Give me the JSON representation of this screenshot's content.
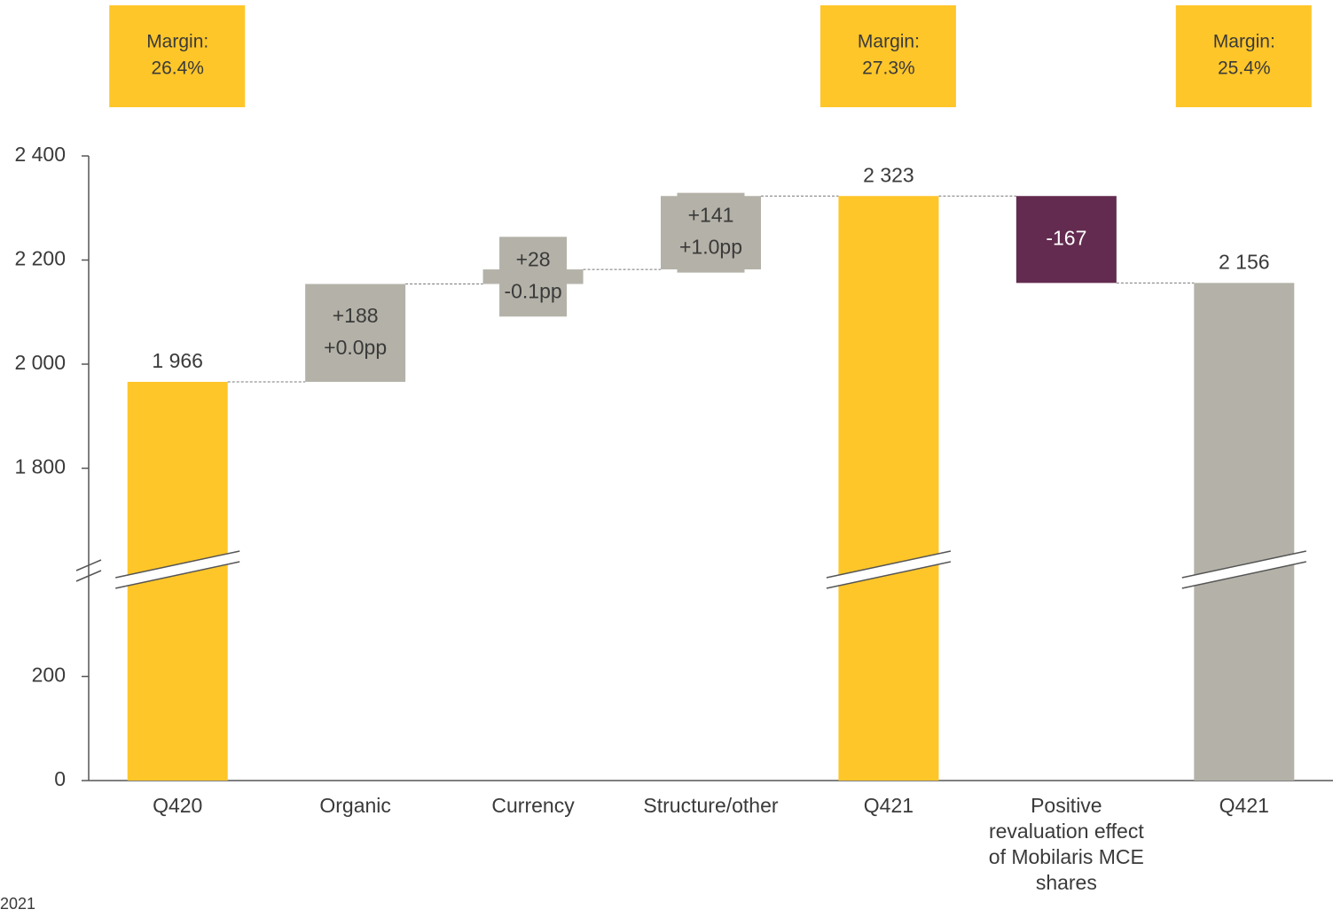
{
  "chart_data": {
    "type": "waterfall",
    "categories": [
      "Q420",
      "Organic",
      "Currency",
      "Structure/other",
      "Q421",
      "Positive revaluation effect of Mobilaris MCE shares",
      "Q421"
    ],
    "values": [
      1966,
      188,
      28,
      141,
      2323,
      -167,
      2156
    ],
    "value_labels": [
      "1 966",
      "+188",
      "+28",
      "+141",
      "2 323",
      "-167",
      "2 156"
    ],
    "bar_kinds": [
      "total",
      "delta",
      "delta",
      "delta",
      "total",
      "delta",
      "total"
    ],
    "colors": [
      "#FFC629",
      "#B4B2A8",
      "#B4B2A8",
      "#B4B2A8",
      "#FFC629",
      "#632B4F",
      "#B4B2A8"
    ],
    "margin_changes": [
      null,
      "+0.0pp",
      "-0.1pp",
      "+1.0pp",
      null,
      null,
      null
    ],
    "margin_title": "Margin:",
    "margins": [
      "26.4%",
      null,
      null,
      null,
      "27.3%",
      null,
      "25.4%"
    ],
    "margin_box_color": "#FFC629",
    "ylim": [
      0,
      2400
    ],
    "yticks": [
      {
        "value": 0,
        "label": "0"
      },
      {
        "value": 200,
        "label": "200"
      },
      {
        "value": 1800,
        "label": "1 800"
      },
      {
        "value": 2000,
        "label": "2 000"
      },
      {
        "value": 2200,
        "label": "2 200"
      },
      {
        "value": 2400,
        "label": "2 400"
      }
    ],
    "axis_break": [
      400,
      1600
    ],
    "footnote": "2021"
  }
}
